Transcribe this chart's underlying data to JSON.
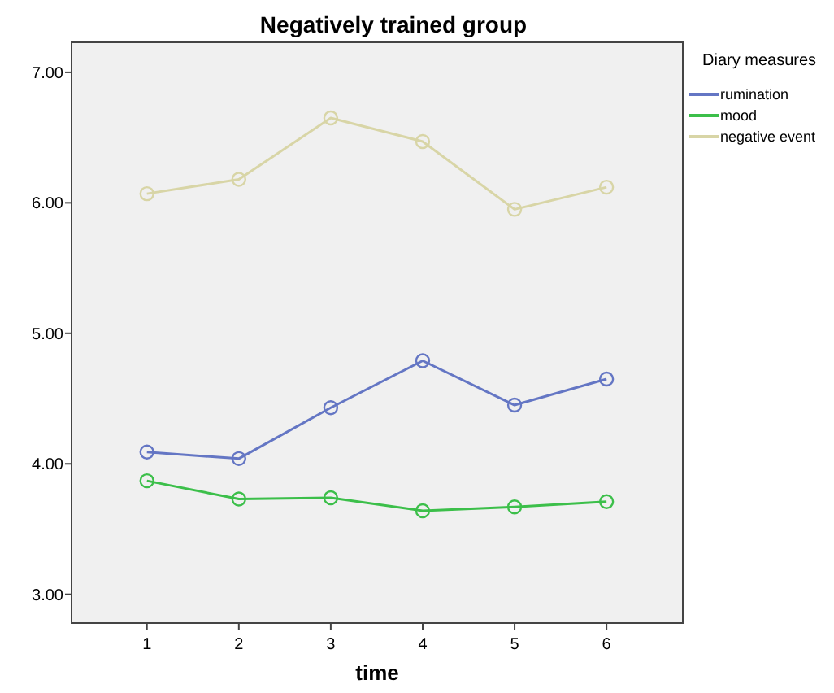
{
  "chart_data": {
    "type": "line",
    "title": "Negatively trained group",
    "xlabel": "time",
    "legend_title": "Diary measures",
    "x": [
      1,
      2,
      3,
      4,
      5,
      6
    ],
    "xlim": [
      0.18,
      6.83
    ],
    "xticks": [
      1,
      2,
      3,
      4,
      5,
      6
    ],
    "ylim": [
      2.78,
      7.23
    ],
    "yticks": [
      {
        "value": 3,
        "label": "3.00"
      },
      {
        "value": 4,
        "label": "4.00"
      },
      {
        "value": 5,
        "label": "5.00"
      },
      {
        "value": 6,
        "label": "6.00"
      },
      {
        "value": 7,
        "label": "7.00"
      }
    ],
    "series": [
      {
        "name": "rumination",
        "color": "#6476c4",
        "values": [
          4.09,
          4.04,
          4.43,
          4.79,
          4.45,
          4.65
        ]
      },
      {
        "name": "mood",
        "color": "#3cbf4a",
        "values": [
          3.87,
          3.73,
          3.74,
          3.64,
          3.67,
          3.71
        ]
      },
      {
        "name": "negative event",
        "color": "#d8d5a6",
        "values": [
          6.07,
          6.18,
          6.65,
          6.47,
          5.95,
          6.12
        ]
      }
    ],
    "marker": "circle",
    "legend": "top right",
    "grid": false
  }
}
